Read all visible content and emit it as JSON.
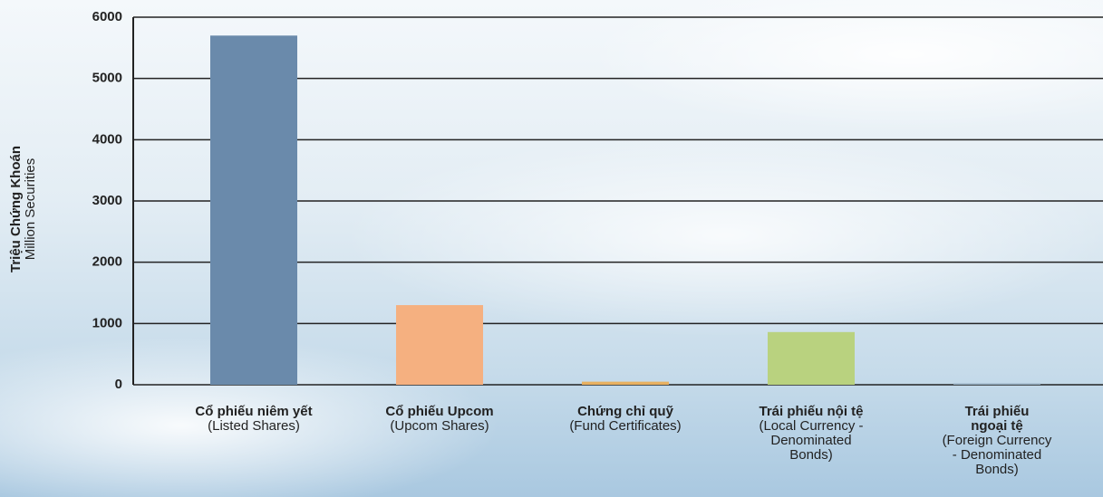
{
  "chart_data": {
    "type": "bar",
    "y_label": "Triệu Chứng Khoán",
    "y_sublabel": "Million Securities",
    "categories": [
      "Cổ phiếu niêm yết",
      "Cổ phiếu Upcom",
      "Chứng chỉ quỹ",
      "Trái phiếu nội tệ",
      "Trái phiếu ngoại tệ"
    ],
    "category_subtitles": [
      "(Listed Shares)",
      "(Upcom Shares)",
      "(Fund Certificates)",
      "(Local Currency - Denominated Bonds)",
      "(Foreign Currency - Denominated Bonds)"
    ],
    "values": [
      5700,
      1300,
      50,
      860,
      20
    ],
    "colors": [
      "#6a8aab",
      "#f5b080",
      "#e8b060",
      "#b9d27f",
      "#8fa6b8"
    ],
    "ylim": [
      0,
      6000
    ],
    "yticks": [
      0,
      1000,
      2000,
      3000,
      4000,
      5000,
      6000
    ],
    "grid": true
  }
}
